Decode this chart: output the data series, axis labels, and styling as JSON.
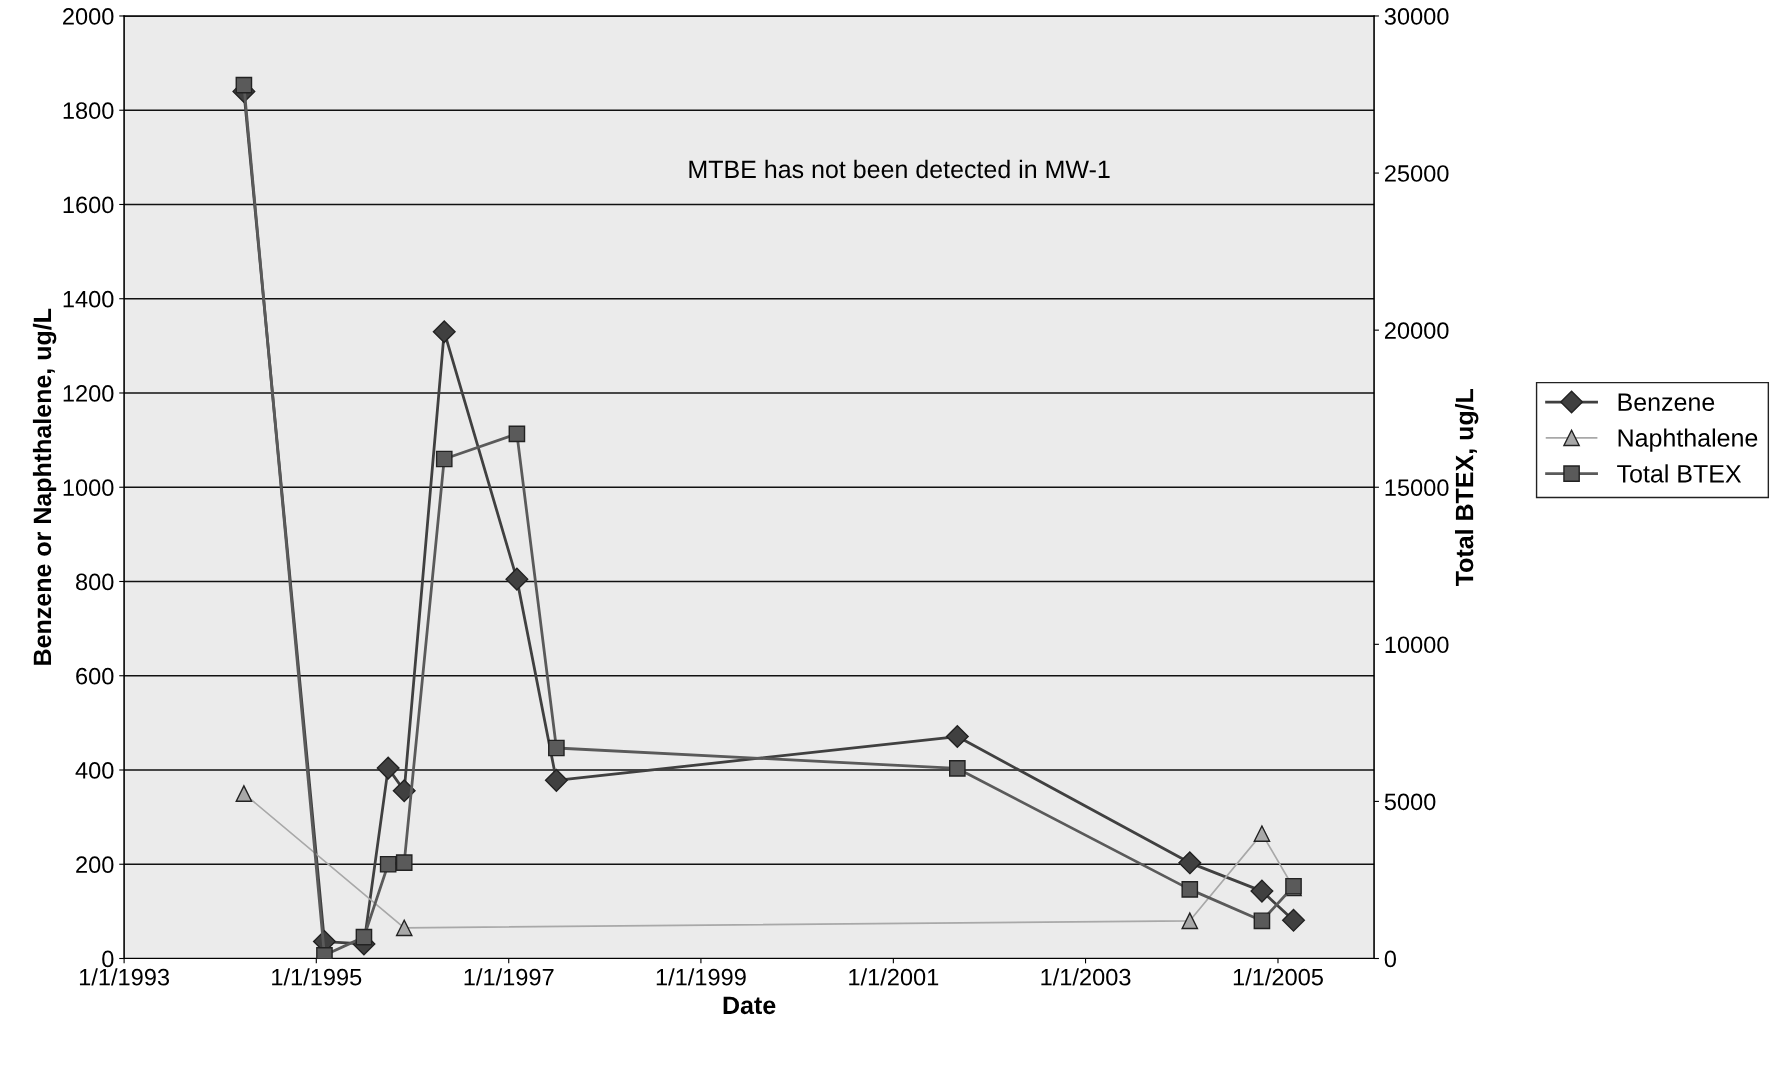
{
  "chart_data": {
    "type": "line",
    "xlabel": "Date",
    "ylabel": "Benzene or Naphthalene, ug/L",
    "y2label": "Total BTEX, ug/L",
    "annotations": [
      "MTBE has not been detected in MW-1"
    ],
    "xlim": [
      "1993-01-01",
      "2006-01-01"
    ],
    "xticks": [
      {
        "value": "1993-01-01",
        "label": "1/1/1993"
      },
      {
        "value": "1995-01-01",
        "label": "1/1/1995"
      },
      {
        "value": "1997-01-01",
        "label": "1/1/1997"
      },
      {
        "value": "1999-01-01",
        "label": "1/1/1999"
      },
      {
        "value": "2001-01-01",
        "label": "1/1/2001"
      },
      {
        "value": "2003-01-01",
        "label": "1/1/2003"
      },
      {
        "value": "2005-01-01",
        "label": "1/1/2005"
      }
    ],
    "ylim": [
      0,
      2000
    ],
    "yticks": [
      0,
      200,
      400,
      600,
      800,
      1000,
      1200,
      1400,
      1600,
      1800,
      2000
    ],
    "y2lim": [
      0,
      30000
    ],
    "y2ticks": [
      0,
      5000,
      10000,
      15000,
      20000,
      25000,
      30000
    ],
    "grid": "y",
    "legend": "right",
    "line_style": "solid",
    "series": [
      {
        "name": "Benzene",
        "color": "#404040",
        "marker": "diamond",
        "x": [
          "1994-04",
          "1995-02",
          "1995-07",
          "1995-10",
          "1995-12",
          "1996-05",
          "1997-02",
          "1997-07",
          "2001-09",
          "2004-02",
          "2004-11",
          "2005-03"
        ],
        "values": [
          1840,
          36,
          31,
          404,
          356,
          1330,
          805,
          378,
          471,
          203,
          143,
          81
        ]
      },
      {
        "name": "Naphthalene",
        "color": "#a8a8a8",
        "marker": "triangle",
        "x": [
          "1994-04",
          "1995-12",
          "2004-02",
          "2004-11",
          "2005-03"
        ],
        "values": [
          350,
          65,
          80,
          265,
          150
        ]
      },
      {
        "name": "Total BTEX",
        "color": "#5a5a5a",
        "marker": "square",
        "axis": "y2",
        "x": [
          "1994-04",
          "1995-02",
          "1995-07",
          "1995-10",
          "1995-12",
          "1996-05",
          "1997-02",
          "1997-07",
          "2001-09",
          "2004-02",
          "2004-11",
          "2005-03"
        ],
        "values": [
          27800,
          100,
          680,
          3000,
          3050,
          15900,
          16700,
          6700,
          6050,
          2200,
          1200,
          2300
        ]
      }
    ]
  }
}
